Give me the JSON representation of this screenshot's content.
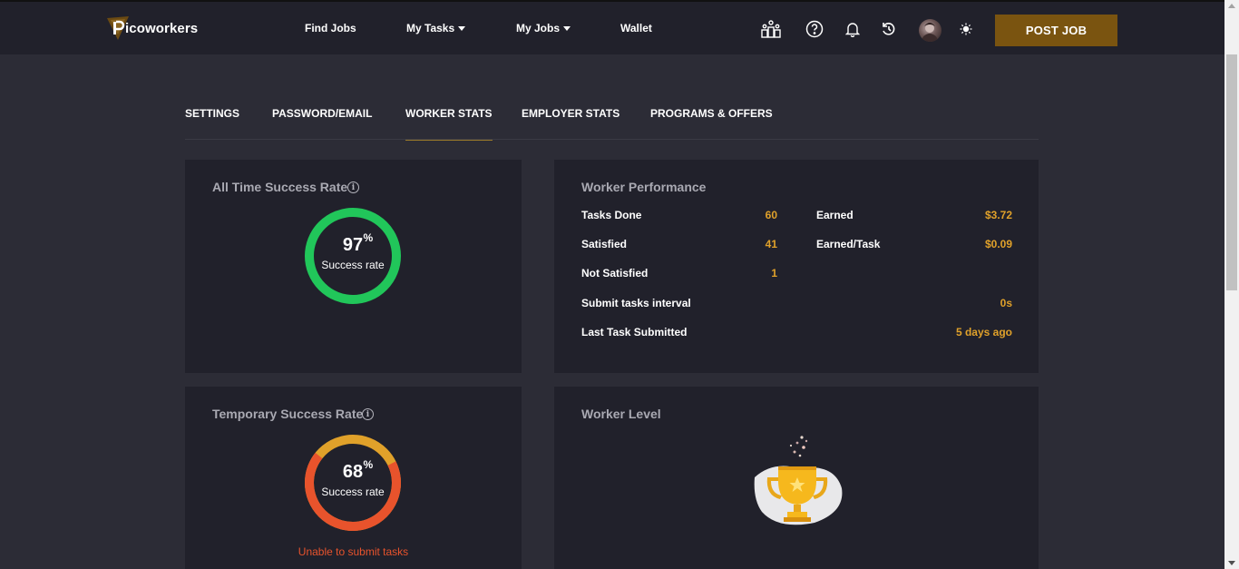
{
  "brand": {
    "name": "icoworkers",
    "accent": "#7a5410"
  },
  "nav": {
    "find_jobs": "Find Jobs",
    "my_tasks": "My Tasks",
    "my_jobs": "My Jobs",
    "wallet": "Wallet",
    "post_job": "POST JOB",
    "icons": [
      "leaderboard-icon",
      "help-icon",
      "bell-icon",
      "history-icon",
      "avatar",
      "theme-toggle-icon"
    ]
  },
  "tabs": [
    {
      "label": "SETTINGS",
      "active": false
    },
    {
      "label": "PASSWORD/EMAIL",
      "active": false
    },
    {
      "label": "WORKER STATS",
      "active": true
    },
    {
      "label": "EMPLOYER STATS",
      "active": false
    },
    {
      "label": "PROGRAMS & OFFERS",
      "active": false
    }
  ],
  "all_time": {
    "title": "All Time Success Rate",
    "value": "97",
    "value_fraction": 0.97,
    "pct": "%",
    "label": "Success rate",
    "color": "#21c65a"
  },
  "temporary": {
    "title": "Temporary Success Rate",
    "value": "68",
    "value_fraction": 0.68,
    "pct": "%",
    "label": "Success rate",
    "warning": "Unable to submit tasks",
    "color_main": "#e8532c",
    "color_secondary": "#e0a12a"
  },
  "performance": {
    "title": "Worker Performance",
    "rows": [
      {
        "label": "Tasks Done",
        "value": "60"
      },
      {
        "label": "Satisfied",
        "value": "41"
      },
      {
        "label": "Not Satisfied",
        "value": "1"
      },
      {
        "label": "Submit tasks interval",
        "value": "0s"
      },
      {
        "label": "Last Task Submitted",
        "value": "5 days ago"
      }
    ],
    "earnings": [
      {
        "label": "Earned",
        "value": "$3.72"
      },
      {
        "label": "Earned/Task",
        "value": "$0.09"
      }
    ]
  },
  "level": {
    "title": "Worker Level",
    "icon": "trophy-icon"
  }
}
